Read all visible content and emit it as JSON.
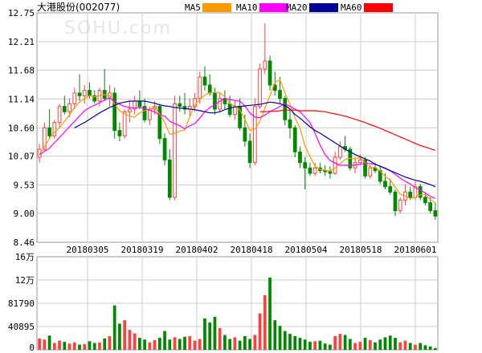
{
  "chart_data": [
    {
      "type": "candlestick",
      "title": "大港股份(002077)",
      "watermark": "SOHU.com",
      "legend": [
        {
          "name": "MA5",
          "color": "#ff9900"
        },
        {
          "name": "MA10",
          "color": "#ff00ff"
        },
        {
          "name": "MA20",
          "color": "#000099"
        },
        {
          "name": "MA60",
          "color": "#ff0000"
        }
      ],
      "yticks": [
        "12.75",
        "12.21",
        "11.68",
        "11.14",
        "10.60",
        "10.07",
        "9.53",
        "9.00",
        "8.46"
      ],
      "ylim": [
        8.46,
        12.75
      ],
      "xticks": [
        "20180305",
        "20180319",
        "20180402",
        "20180418",
        "20180504",
        "20180518",
        "20180601"
      ],
      "grid": true,
      "up_color": "#ff4040",
      "down_color": "#008800",
      "candles": [
        [
          10.05,
          10.3,
          9.95,
          10.2
        ],
        [
          10.2,
          10.7,
          10.15,
          10.6
        ],
        [
          10.6,
          10.95,
          10.4,
          10.45
        ],
        [
          10.45,
          10.75,
          10.4,
          10.7
        ],
        [
          10.7,
          11.05,
          10.6,
          11.0
        ],
        [
          11.0,
          11.2,
          10.85,
          10.9
        ],
        [
          10.9,
          11.15,
          10.8,
          11.05
        ],
        [
          11.05,
          11.35,
          10.95,
          11.25
        ],
        [
          11.25,
          11.6,
          11.1,
          11.2
        ],
        [
          11.2,
          11.4,
          11.05,
          11.3
        ],
        [
          11.3,
          11.45,
          11.15,
          11.2
        ],
        [
          11.2,
          11.3,
          11.05,
          11.1
        ],
        [
          11.1,
          11.35,
          11.0,
          11.3
        ],
        [
          11.3,
          11.7,
          11.1,
          11.15
        ],
        [
          11.15,
          11.4,
          11.0,
          11.25
        ],
        [
          11.25,
          11.35,
          10.4,
          10.55
        ],
        [
          10.55,
          10.7,
          10.35,
          10.45
        ],
        [
          10.45,
          10.95,
          10.4,
          10.9
        ],
        [
          10.9,
          11.1,
          10.7,
          10.95
        ],
        [
          10.95,
          11.2,
          10.85,
          11.1
        ],
        [
          11.1,
          11.3,
          10.95,
          11.0
        ],
        [
          11.0,
          11.15,
          10.7,
          10.75
        ],
        [
          10.75,
          11.0,
          10.65,
          10.95
        ],
        [
          10.95,
          11.1,
          10.85,
          11.0
        ],
        [
          11.0,
          11.05,
          10.3,
          10.4
        ],
        [
          10.4,
          10.5,
          9.9,
          10.0
        ],
        [
          10.0,
          10.2,
          9.25,
          9.3
        ],
        [
          9.3,
          11.2,
          9.25,
          11.05
        ],
        [
          11.05,
          11.2,
          10.9,
          11.0
        ],
        [
          11.0,
          11.25,
          10.85,
          10.95
        ],
        [
          10.95,
          11.15,
          10.8,
          11.0
        ],
        [
          11.0,
          11.25,
          10.9,
          11.15
        ],
        [
          11.15,
          11.65,
          11.05,
          11.55
        ],
        [
          11.55,
          11.75,
          11.3,
          11.4
        ],
        [
          11.4,
          11.6,
          11.2,
          11.25
        ],
        [
          11.25,
          11.35,
          10.85,
          10.95
        ],
        [
          10.95,
          11.25,
          10.9,
          11.15
        ],
        [
          11.15,
          11.3,
          10.95,
          11.05
        ],
        [
          11.05,
          11.2,
          10.8,
          10.85
        ],
        [
          10.85,
          11.1,
          10.75,
          11.0
        ],
        [
          11.0,
          11.15,
          10.55,
          10.6
        ],
        [
          10.6,
          10.85,
          10.25,
          10.35
        ],
        [
          10.35,
          10.5,
          9.85,
          9.95
        ],
        [
          9.95,
          11.15,
          9.9,
          11.0
        ],
        [
          11.0,
          11.8,
          10.95,
          11.7
        ],
        [
          11.7,
          12.55,
          11.6,
          11.85
        ],
        [
          11.85,
          11.95,
          11.3,
          11.4
        ],
        [
          11.4,
          11.65,
          11.2,
          11.3
        ],
        [
          11.3,
          11.55,
          11.05,
          11.15
        ],
        [
          11.15,
          11.2,
          10.65,
          10.75
        ],
        [
          10.75,
          10.95,
          10.4,
          10.6
        ],
        [
          10.6,
          10.65,
          10.05,
          10.15
        ],
        [
          10.15,
          10.25,
          9.85,
          9.95
        ],
        [
          9.95,
          10.05,
          9.45,
          9.85
        ],
        [
          9.85,
          9.95,
          9.7,
          9.75
        ],
        [
          9.75,
          9.95,
          9.7,
          9.85
        ],
        [
          9.85,
          9.95,
          9.75,
          9.8
        ],
        [
          9.8,
          9.9,
          9.7,
          9.78
        ],
        [
          9.78,
          9.88,
          9.65,
          9.75
        ],
        [
          9.75,
          10.15,
          9.72,
          10.05
        ],
        [
          10.05,
          10.35,
          10.0,
          10.25
        ],
        [
          10.25,
          10.45,
          10.15,
          10.2
        ],
        [
          10.2,
          10.25,
          9.8,
          9.85
        ],
        [
          9.85,
          10.05,
          9.75,
          9.95
        ],
        [
          9.95,
          10.1,
          9.9,
          10.0
        ],
        [
          10.0,
          10.05,
          9.65,
          9.7
        ],
        [
          9.7,
          9.9,
          9.65,
          9.85
        ],
        [
          9.85,
          9.95,
          9.75,
          9.8
        ],
        [
          9.8,
          9.9,
          9.55,
          9.6
        ],
        [
          9.6,
          9.75,
          9.45,
          9.5
        ],
        [
          9.5,
          9.65,
          9.35,
          9.4
        ],
        [
          9.4,
          9.45,
          8.95,
          9.05
        ],
        [
          9.05,
          9.3,
          9.0,
          9.25
        ],
        [
          9.25,
          9.55,
          9.15,
          9.4
        ],
        [
          9.4,
          9.5,
          9.25,
          9.3
        ],
        [
          9.3,
          9.6,
          9.25,
          9.5
        ],
        [
          9.5,
          9.55,
          9.25,
          9.3
        ],
        [
          9.3,
          9.4,
          9.15,
          9.2
        ],
        [
          9.2,
          9.3,
          9.0,
          9.05
        ],
        [
          9.05,
          9.2,
          8.88,
          8.95
        ]
      ],
      "ma5": [
        10.1,
        10.25,
        10.4,
        10.52,
        10.6,
        10.72,
        10.84,
        10.98,
        11.08,
        11.15,
        11.2,
        11.18,
        11.2,
        11.22,
        11.2,
        11.04,
        10.92,
        10.86,
        10.82,
        10.8,
        10.88,
        10.92,
        10.95,
        10.98,
        10.86,
        10.7,
        10.48,
        10.5,
        10.54,
        10.56,
        10.8,
        11.03,
        11.13,
        11.21,
        11.26,
        11.26,
        11.26,
        11.18,
        11.05,
        11.01,
        10.93,
        10.76,
        10.55,
        10.58,
        10.72,
        10.97,
        11.2,
        11.45,
        11.5,
        11.25,
        11.04,
        10.79,
        10.59,
        10.26,
        10.06,
        9.88,
        9.82,
        9.81,
        9.79,
        9.85,
        9.93,
        10.01,
        10.03,
        10.02,
        10.05,
        9.95,
        9.86,
        9.86,
        9.79,
        9.69,
        9.63,
        9.49,
        9.36,
        9.32,
        9.28,
        9.3,
        9.35,
        9.35,
        9.26,
        9.2
      ],
      "ma10": [
        10.1,
        10.16,
        10.22,
        10.32,
        10.42,
        10.52,
        10.62,
        10.72,
        10.82,
        10.92,
        10.98,
        11.02,
        11.07,
        11.12,
        11.16,
        11.1,
        11.04,
        11.0,
        10.98,
        10.97,
        10.98,
        10.96,
        10.93,
        10.9,
        10.84,
        10.82,
        10.72,
        10.68,
        10.64,
        10.58,
        10.64,
        10.68,
        10.78,
        10.9,
        10.98,
        11.03,
        11.1,
        11.15,
        11.13,
        11.11,
        11.1,
        11.01,
        10.88,
        10.8,
        10.79,
        10.84,
        10.9,
        10.95,
        11.0,
        11.05,
        11.0,
        10.95,
        10.9,
        10.8,
        10.7,
        10.5,
        10.28,
        10.1,
        9.99,
        9.94,
        9.9,
        9.9,
        9.9,
        9.9,
        9.92,
        9.94,
        9.93,
        9.92,
        9.88,
        9.85,
        9.8,
        9.73,
        9.66,
        9.6,
        9.55,
        9.48,
        9.44,
        9.38,
        9.32,
        9.28
      ],
      "ma20": [
        10.6,
        10.65,
        10.7,
        10.76,
        10.82,
        10.88,
        10.93,
        10.98,
        11.02,
        11.06,
        11.08,
        11.1,
        11.1,
        11.1,
        11.1,
        11.08,
        11.06,
        11.03,
        11.01,
        11.0,
        10.98,
        10.97,
        10.96,
        10.95,
        10.94,
        10.92,
        10.9,
        10.88,
        10.88,
        10.9,
        10.94,
        10.97,
        10.99,
        11.0,
        11.01,
        11.02,
        11.03,
        11.04,
        11.06,
        11.08,
        11.07,
        11.05,
        11.02,
        10.95,
        10.85,
        10.78,
        10.7,
        10.62,
        10.55,
        10.5,
        10.44,
        10.38,
        10.32,
        10.26,
        10.2,
        10.15,
        10.1,
        10.06,
        10.02,
        9.98,
        9.92,
        9.88,
        9.84,
        9.8,
        9.76,
        9.72,
        9.68,
        9.65,
        9.62,
        9.6,
        9.57,
        9.54,
        9.5
      ],
      "ma60": [
        10.9,
        10.9,
        10.91,
        10.91,
        10.92,
        10.93,
        10.93,
        10.93,
        10.92,
        10.92,
        10.92,
        10.92,
        10.91,
        10.9,
        10.88,
        10.86,
        10.84,
        10.82,
        10.79,
        10.76,
        10.73,
        10.7,
        10.66,
        10.63,
        10.59,
        10.55,
        10.51,
        10.47,
        10.43,
        10.39,
        10.35,
        10.31,
        10.27,
        10.24,
        10.21,
        10.18
      ],
      "volume_panel": {
        "yticks": [
          "16万",
          "12万",
          "81790",
          "40895",
          "0"
        ],
        "ylim": [
          0,
          163580
        ],
        "volumes": [
          20000,
          18000,
          25000,
          12000,
          16000,
          14000,
          11000,
          13000,
          9000,
          10000,
          15000,
          12000,
          13000,
          20000,
          24000,
          78000,
          46000,
          52000,
          35000,
          29000,
          21000,
          18000,
          13000,
          17000,
          21000,
          33000,
          18000,
          22000,
          19000,
          23000,
          24000,
          16000,
          19000,
          55000,
          48000,
          58000,
          38000,
          26000,
          19000,
          22000,
          16000,
          24000,
          19000,
          26000,
          64000,
          96000,
          127000,
          52000,
          42000,
          33000,
          28000,
          24000,
          21000,
          18000,
          14000,
          15000,
          16000,
          11000,
          9000,
          24000,
          28000,
          26000,
          19000,
          12000,
          14000,
          21000,
          17000,
          13000,
          18000,
          22000,
          25000,
          21000,
          13000,
          16000,
          12000,
          9000,
          12000,
          8000,
          6000,
          3000
        ]
      }
    }
  ]
}
